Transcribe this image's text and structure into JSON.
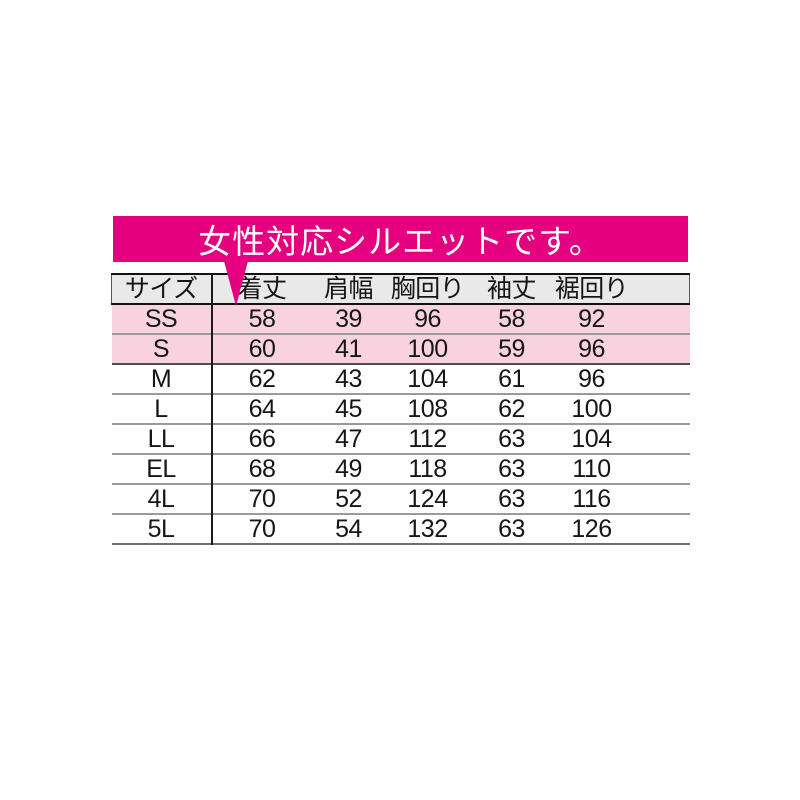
{
  "banner": {
    "text": "女性対応シルエットです。",
    "bg_color": "#E4007F",
    "text_color": "#FFFFFF"
  },
  "chart_data": {
    "type": "table",
    "title": "女性対応シルエットです。",
    "columns": [
      "サイズ",
      "着丈",
      "肩幅",
      "胸回り",
      "袖丈",
      "裾回り"
    ],
    "rows": [
      {
        "size": "SS",
        "values": [
          "58",
          "39",
          "96",
          "58",
          "92"
        ],
        "highlight": true
      },
      {
        "size": "S",
        "values": [
          "60",
          "41",
          "100",
          "59",
          "96"
        ],
        "highlight": true
      },
      {
        "size": "M",
        "values": [
          "62",
          "43",
          "104",
          "61",
          "96"
        ],
        "highlight": false
      },
      {
        "size": "L",
        "values": [
          "64",
          "45",
          "108",
          "62",
          "100"
        ],
        "highlight": false
      },
      {
        "size": "LL",
        "values": [
          "66",
          "47",
          "112",
          "63",
          "104"
        ],
        "highlight": false
      },
      {
        "size": "EL",
        "values": [
          "68",
          "49",
          "118",
          "63",
          "110"
        ],
        "highlight": false
      },
      {
        "size": "4L",
        "values": [
          "70",
          "52",
          "124",
          "63",
          "116"
        ],
        "highlight": false
      },
      {
        "size": "5L",
        "values": [
          "70",
          "54",
          "132",
          "63",
          "126"
        ],
        "highlight": false
      }
    ],
    "highlight_row_color": "#F8D3DF",
    "header_bg_color": "#E9E9E9",
    "layout": {
      "grid": "horizontal-separators",
      "legend": "none"
    }
  }
}
